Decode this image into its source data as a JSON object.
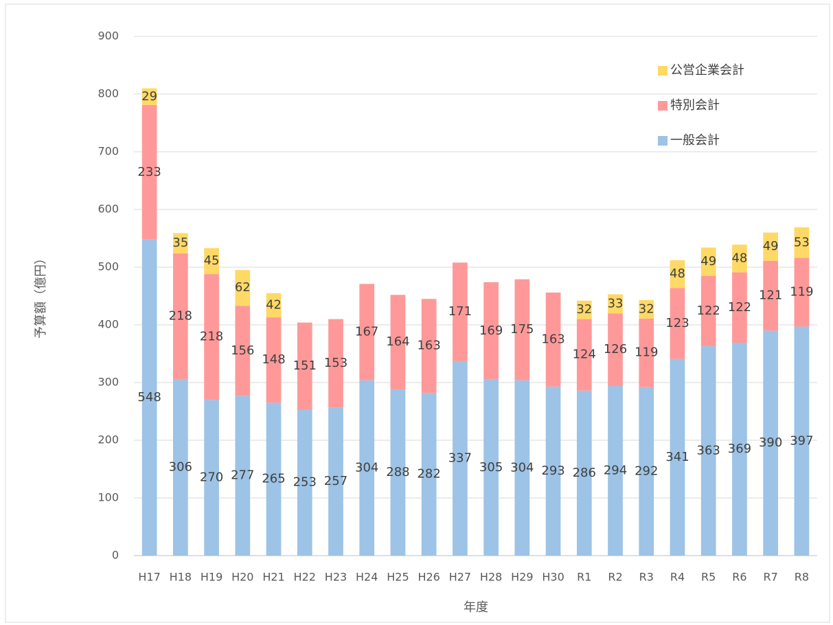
{
  "chart_data": {
    "type": "stacked_bar",
    "x_label": "年度",
    "y_label": "予算額（億円）",
    "categories": [
      "H17",
      "H18",
      "H19",
      "H20",
      "H21",
      "H22",
      "H23",
      "H24",
      "H25",
      "H26",
      "H27",
      "H28",
      "H29",
      "H30",
      "R1",
      "R2",
      "R3",
      "R4",
      "R5",
      "R6",
      "R7",
      "R8"
    ],
    "series": [
      {
        "name": "一般会計",
        "color": "#9dc3e6",
        "values": [
          548,
          306,
          270,
          277,
          265,
          253,
          257,
          304,
          288,
          282,
          337,
          305,
          304,
          293,
          286,
          294,
          292,
          341,
          363,
          369,
          390,
          397
        ]
      },
      {
        "name": "特別会計",
        "color": "#ff9999",
        "values": [
          233,
          218,
          218,
          156,
          148,
          151,
          153,
          167,
          164,
          163,
          171,
          169,
          175,
          163,
          124,
          126,
          119,
          123,
          122,
          122,
          121,
          119
        ]
      },
      {
        "name": "公営企業会計",
        "color": "#ffd966",
        "values": [
          29,
          35,
          45,
          62,
          42,
          null,
          null,
          null,
          null,
          null,
          null,
          null,
          null,
          null,
          32,
          33,
          32,
          48,
          49,
          48,
          49,
          53
        ]
      }
    ],
    "ylim": [
      0,
      900
    ],
    "yticks": [
      0,
      100,
      200,
      300,
      400,
      500,
      600,
      700,
      800,
      900
    ],
    "grid": true,
    "legend": "upper right"
  }
}
